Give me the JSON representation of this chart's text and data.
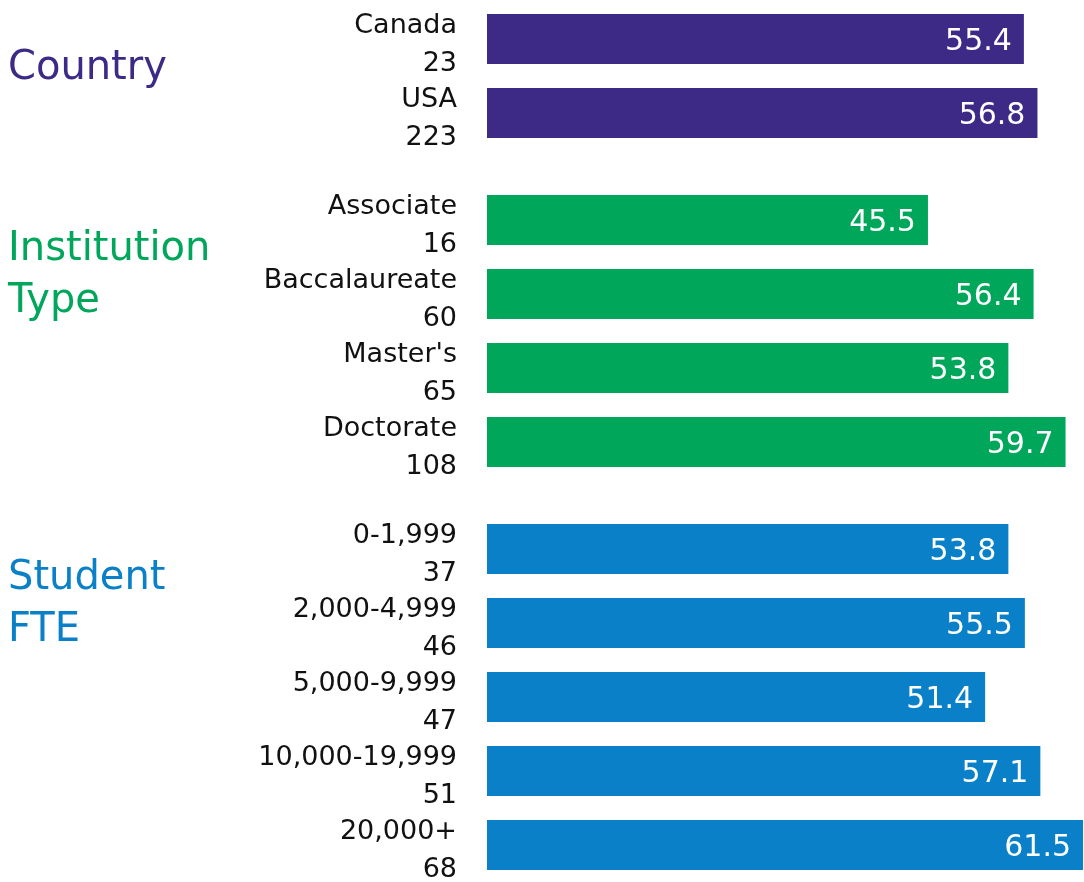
{
  "chart_data": [
    {
      "type": "bar",
      "orientation": "horizontal",
      "title": "Country",
      "categories": [
        "Canada\n23",
        "USA\n223"
      ],
      "values": [
        55.4,
        56.8
      ],
      "colors": [
        "#3d2a86",
        "#3d2a86"
      ],
      "data_labels": true
    },
    {
      "type": "bar",
      "orientation": "horizontal",
      "title": "Institution\nType",
      "categories": [
        "Associate\n16",
        "Baccalaureate\n60",
        "Master's\n65",
        "Doctorate\n108"
      ],
      "values": [
        45.5,
        56.4,
        53.8,
        59.7
      ],
      "colors": [
        "#00a65a",
        "#00a65a",
        "#00a65a",
        "#00a65a"
      ],
      "data_labels": true
    },
    {
      "type": "bar",
      "orientation": "horizontal",
      "title": "Student\nFTE",
      "categories": [
        "0-1,999\n37",
        "2,000-4,999\n46",
        "5,000-9,999\n47",
        "10,000-19,999\n51",
        "20,000+\n68"
      ],
      "values": [
        53.8,
        55.5,
        51.4,
        57.1,
        61.5
      ],
      "colors": [
        "#0a80c8",
        "#0a80c8",
        "#0a80c8",
        "#0a80c8",
        "#0a80c8"
      ],
      "data_labels": true
    }
  ]
}
